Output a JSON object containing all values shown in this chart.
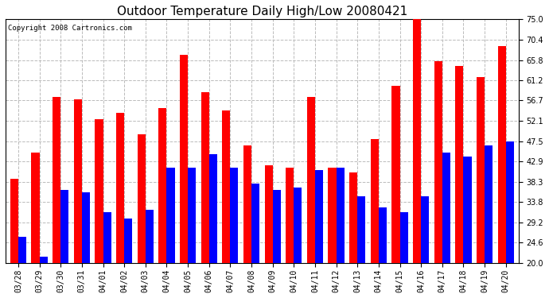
{
  "title": "Outdoor Temperature Daily High/Low 20080421",
  "copyright": "Copyright 2008 Cartronics.com",
  "dates": [
    "03/28",
    "03/29",
    "03/30",
    "03/31",
    "04/01",
    "04/02",
    "04/03",
    "04/04",
    "04/05",
    "04/06",
    "04/07",
    "04/08",
    "04/09",
    "04/10",
    "04/11",
    "04/12",
    "04/13",
    "04/14",
    "04/15",
    "04/16",
    "04/17",
    "04/18",
    "04/19",
    "04/20"
  ],
  "highs": [
    39.0,
    45.0,
    57.5,
    57.0,
    52.5,
    54.0,
    49.0,
    55.0,
    67.0,
    58.5,
    54.5,
    46.5,
    42.0,
    41.5,
    57.5,
    41.5,
    40.5,
    48.0,
    60.0,
    76.0,
    65.5,
    64.5,
    62.0,
    69.0
  ],
  "lows": [
    26.0,
    21.5,
    36.5,
    36.0,
    31.5,
    30.0,
    32.0,
    41.5,
    41.5,
    44.5,
    41.5,
    38.0,
    36.5,
    37.0,
    41.0,
    41.5,
    35.0,
    32.5,
    31.5,
    35.0,
    45.0,
    44.0,
    46.5,
    47.5
  ],
  "high_color": "#ff0000",
  "low_color": "#0000ff",
  "bg_color": "#ffffff",
  "plot_bg_color": "#ffffff",
  "grid_color": "#bbbbbb",
  "ymin": 20.0,
  "ymax": 75.0,
  "yticks": [
    20.0,
    24.6,
    29.2,
    33.8,
    38.3,
    42.9,
    47.5,
    52.1,
    56.7,
    61.2,
    65.8,
    70.4,
    75.0
  ],
  "bar_width": 0.38,
  "title_fontsize": 11,
  "tick_fontsize": 7,
  "copyright_fontsize": 6.5
}
